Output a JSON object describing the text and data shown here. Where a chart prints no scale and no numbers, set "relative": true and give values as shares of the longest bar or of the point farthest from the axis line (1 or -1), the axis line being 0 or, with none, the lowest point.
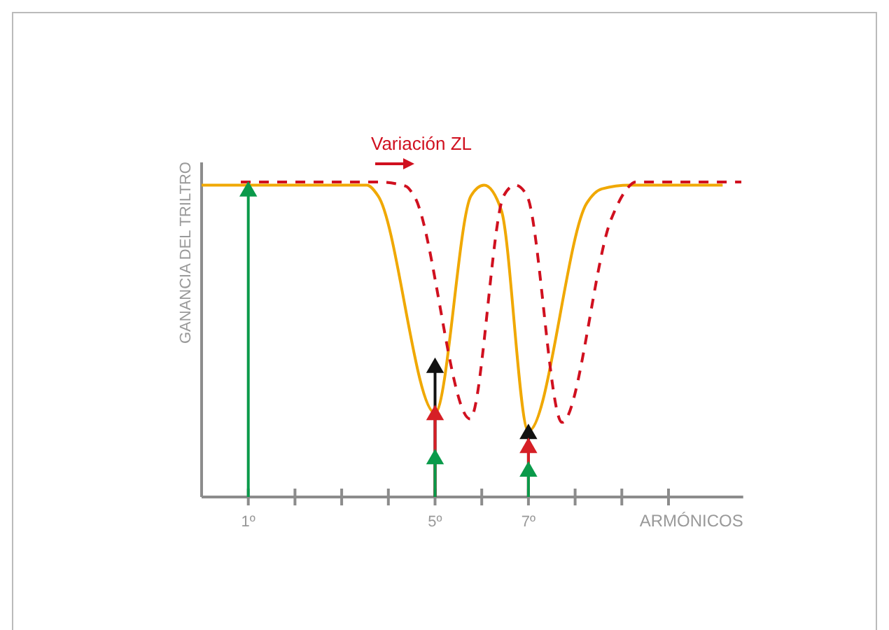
{
  "chart_data": {
    "type": "line",
    "relative": true,
    "ylabel": "GANANCIA DEL TRILTRO",
    "xlabel": "ARMÓNICOS",
    "xlim": [
      0,
      11.6
    ],
    "xticks": [
      {
        "value": 1,
        "label": "1º"
      },
      {
        "value": 2,
        "label": null
      },
      {
        "value": 3,
        "label": null
      },
      {
        "value": 4,
        "label": null
      },
      {
        "value": 5,
        "label": "5º"
      },
      {
        "value": 6,
        "label": null
      },
      {
        "value": 7,
        "label": "7º"
      },
      {
        "value": 8,
        "label": null
      },
      {
        "value": 9,
        "label": null
      },
      {
        "value": 10,
        "label": null
      }
    ],
    "annotations": [
      "Variación ZL"
    ],
    "grid": false,
    "series": [
      {
        "line_style": "solid",
        "color": "#f0a800",
        "x": [
          0,
          3.54,
          3.78,
          5.0,
          5.77,
          6.05,
          6.42,
          7.0,
          8.25,
          8.57,
          9.17,
          11.16
        ],
        "values": [
          0.99,
          0.99,
          0.956,
          0.267,
          0.956,
          0.99,
          0.91,
          0.209,
          0.933,
          0.978,
          0.99,
          0.99
        ]
      },
      {
        "line_style": "dashed",
        "color": "#d0101f",
        "x": [
          0.84,
          3.78,
          4.37,
          4.55,
          5.75,
          6.47,
          6.72,
          6.97,
          7.72,
          8.77,
          9.07,
          9.3,
          11.56
        ],
        "values": [
          1.0,
          1.0,
          0.987,
          0.956,
          0.248,
          0.956,
          0.99,
          0.956,
          0.237,
          0.881,
          0.97,
          1.0,
          1.0
        ]
      },
      {
        "type": "lollipop",
        "marker": "triangle",
        "color": "#111111",
        "x": [
          5,
          7
        ],
        "values": [
          0.41,
          0.2
        ]
      },
      {
        "type": "lollipop",
        "marker": "triangle",
        "color": "#d61f26",
        "x": [
          5,
          7
        ],
        "values": [
          0.26,
          0.156
        ]
      },
      {
        "type": "lollipop",
        "marker": "triangle",
        "color": "#0a9a4a",
        "x": [
          1,
          5,
          7
        ],
        "values": [
          0.97,
          0.12,
          0.081
        ]
      }
    ]
  }
}
